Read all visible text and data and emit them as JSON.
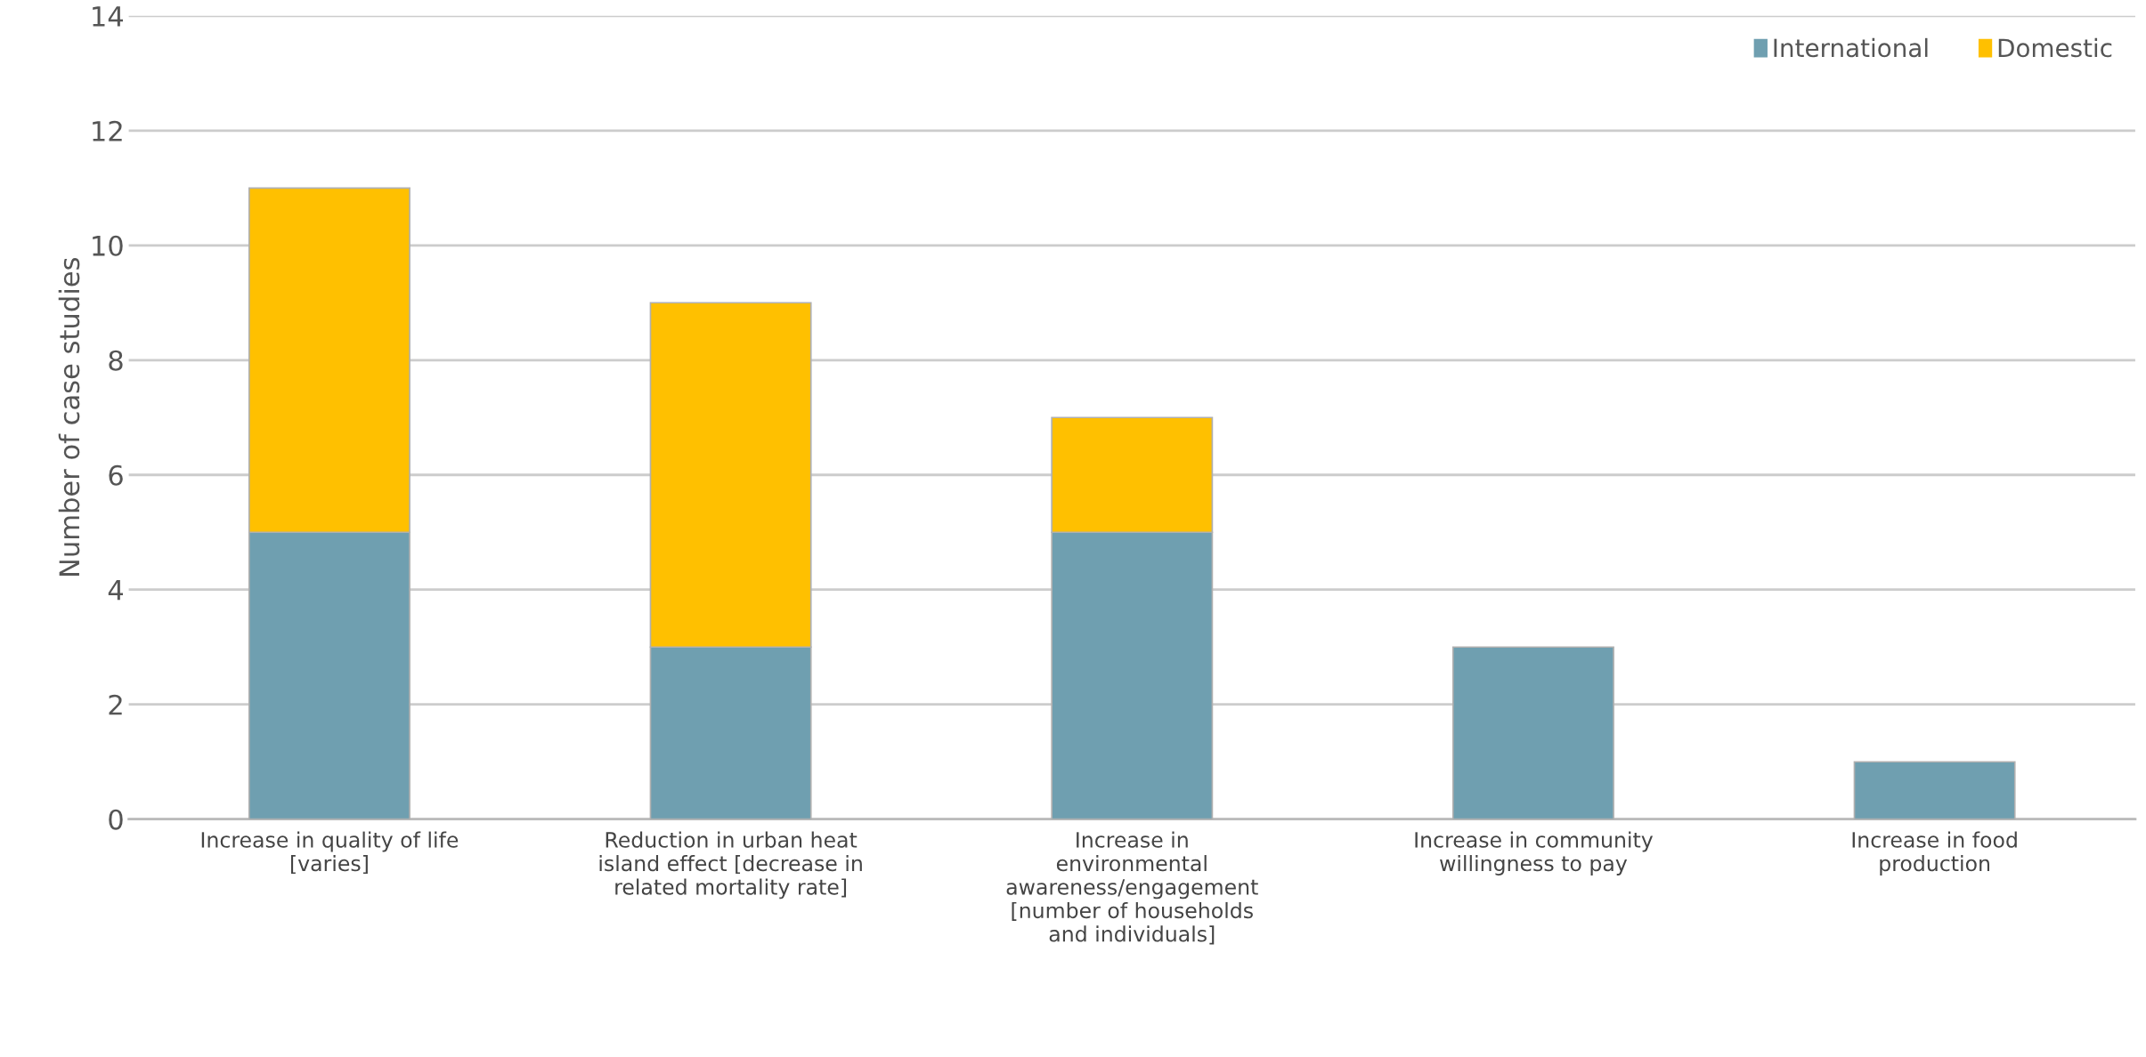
{
  "chart_data": {
    "type": "bar",
    "stacked": true,
    "ylabel": "Number of case studies",
    "categories": [
      "Increase in quality of life\n[varies]",
      "Reduction in urban heat\nisland effect [decrease in\nrelated mortality rate]",
      "Increase in\nenvironmental\nawareness/engagement\n[number of households\nand individuals]",
      "Increase in community\nwillingness to pay",
      "Increase in food\nproduction"
    ],
    "series": [
      {
        "name": "International",
        "color": "#6f9fb0",
        "values": [
          5,
          3,
          5,
          3,
          1
        ]
      },
      {
        "name": "Domestic",
        "color": "#ffc000",
        "values": [
          6,
          6,
          2,
          null,
          null
        ]
      }
    ],
    "ylim": [
      0,
      14
    ],
    "yticks": [
      0,
      2,
      4,
      6,
      8,
      10,
      12,
      14
    ],
    "grid": "y",
    "legend": "top right"
  }
}
